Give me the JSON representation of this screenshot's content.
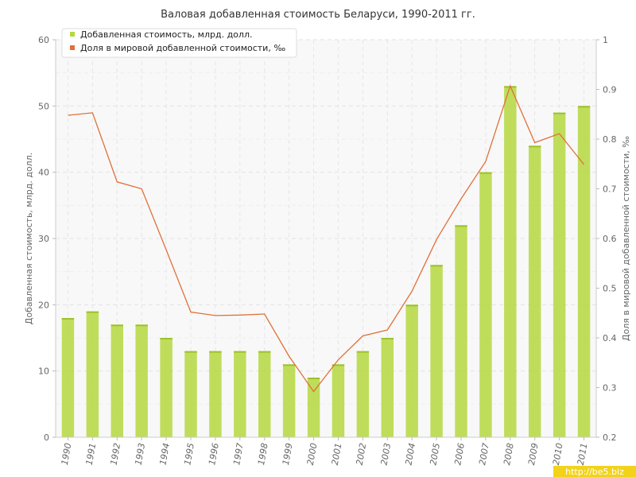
{
  "chart_data": {
    "type": "bar",
    "title": "Валовая добавленная стоимость Беларуси, 1990-2011 гг.",
    "categories": [
      "1990",
      "1991",
      "1992",
      "1993",
      "1994",
      "1995",
      "1996",
      "1997",
      "1998",
      "1999",
      "2000",
      "2001",
      "2002",
      "2003",
      "2004",
      "2005",
      "2006",
      "2007",
      "2008",
      "2009",
      "2010",
      "2011"
    ],
    "series": [
      {
        "name": "Добавленная стоимость, млрд. долл.",
        "type": "bar",
        "axis": "left",
        "color": "#b5d840",
        "values": [
          18,
          19,
          17,
          17,
          15,
          13,
          13,
          13,
          13,
          11,
          9,
          11,
          13,
          15,
          20,
          26,
          32,
          40,
          53,
          44,
          49,
          50
        ]
      },
      {
        "name": "Доля в мировой добавленной стоимости, ‰",
        "type": "line",
        "axis": "right",
        "color": "#e0703a",
        "values": [
          0.848,
          0.853,
          0.714,
          0.7,
          0.577,
          0.452,
          0.445,
          0.446,
          0.448,
          0.363,
          0.292,
          0.356,
          0.404,
          0.416,
          0.494,
          0.598,
          0.68,
          0.755,
          0.907,
          0.793,
          0.811,
          0.749
        ]
      }
    ],
    "ylabel": "Добавленная стоимость, млрд. долл.",
    "ylabel_right": "Доля в мировой добавленной стоимости, ‰",
    "ylim": [
      0,
      60
    ],
    "yticks": [
      "0",
      "10",
      "20",
      "30",
      "40",
      "50",
      "60"
    ],
    "ylim_right": [
      0.2,
      1
    ],
    "yticks_right": [
      "0.2",
      "0.3",
      "0.4",
      "0.5",
      "0.6",
      "0.7",
      "0.8",
      "0.9",
      "1"
    ],
    "grid": true,
    "legend_position": "top-left"
  },
  "watermark": "http://be5.biz"
}
